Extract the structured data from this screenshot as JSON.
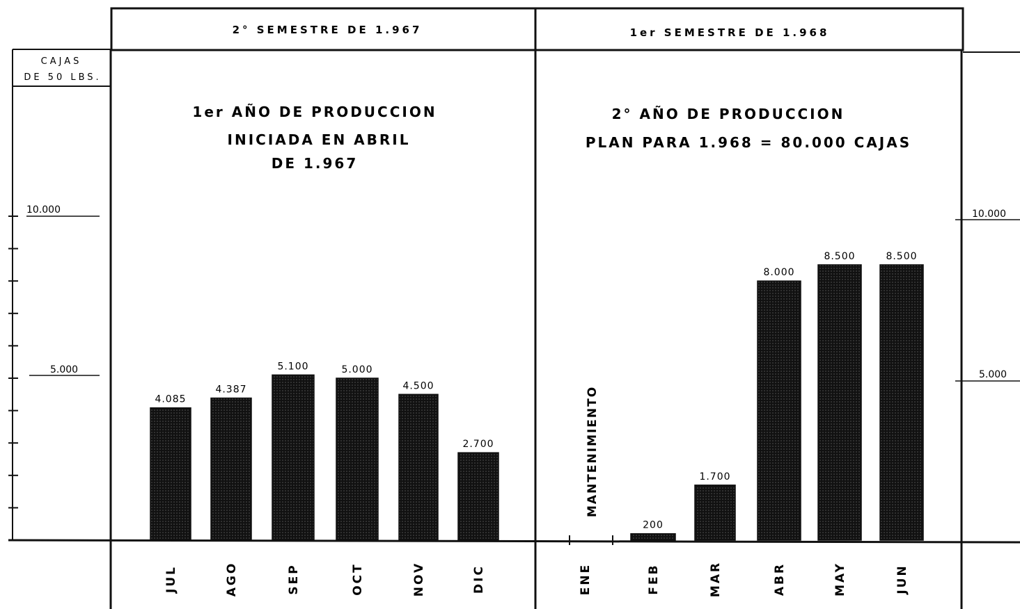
{
  "chart_data": {
    "type": "bar",
    "unit_label": [
      "CAJAS",
      "DE 50 LBS."
    ],
    "y_ticks": [
      {
        "value": 10000,
        "left_label": "10.000",
        "right_label": "10.000"
      },
      {
        "value": 5000,
        "left_label": "5.000",
        "right_label": "5.000"
      }
    ],
    "ylim": [
      0,
      10000
    ],
    "panels": [
      {
        "header": "2° SEMESTRE DE 1.967",
        "title_lines": [
          "1er AÑO DE PRODUCCION",
          "INICIADA EN ABRIL",
          "DE 1.967"
        ],
        "categories": [
          "JUL",
          "AGO",
          "SEP",
          "OCT",
          "NOV",
          "DIC"
        ],
        "values": [
          4085,
          4387,
          5100,
          5000,
          4500,
          2700
        ],
        "value_labels": [
          "4.085",
          "4.387",
          "5.100",
          "5.000",
          "4.500",
          "2.700"
        ]
      },
      {
        "header": "1er SEMESTRE DE 1.968",
        "title_lines": [
          "2° AÑO DE PRODUCCION",
          "PLAN PARA 1.968 = 80.000 CAJAS"
        ],
        "categories": [
          "ENE",
          "FEB",
          "MAR",
          "ABR",
          "MAY",
          "JUN"
        ],
        "values": [
          0,
          200,
          1700,
          8000,
          8500,
          8500
        ],
        "value_labels": [
          "",
          "200",
          "1.700",
          "8.000",
          "8.500",
          "8.500"
        ],
        "annotation": "MANTENIMIENTO"
      }
    ]
  }
}
